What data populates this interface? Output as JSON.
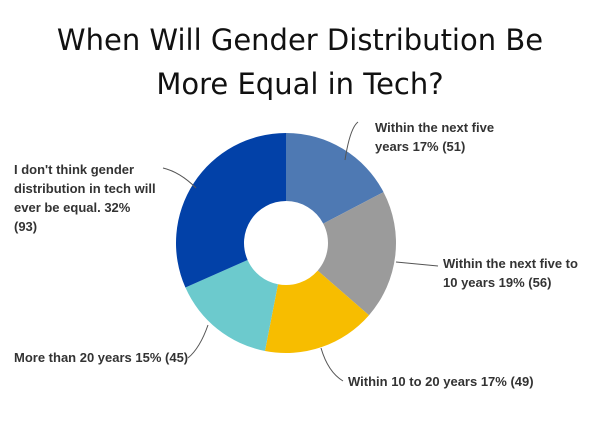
{
  "chart_data": {
    "type": "pie",
    "variant": "donut",
    "title_lines": [
      "When Will Gender Distribution Be",
      "More Equal in Tech?"
    ],
    "slices": [
      {
        "label_lines": [
          "Within the next five",
          "years 17% (51)"
        ],
        "percent": 17,
        "count": 51,
        "color": "#4e79b3"
      },
      {
        "label_lines": [
          "Within the next five to",
          "10 years 19% (56)"
        ],
        "percent": 19,
        "count": 56,
        "color": "#9b9b9b"
      },
      {
        "label_lines": [
          "Within 10 to 20 years 17% (49)"
        ],
        "percent": 17,
        "count": 49,
        "color": "#f7bd00"
      },
      {
        "label_lines": [
          "More than 20 years 15% (45)"
        ],
        "percent": 15,
        "count": 45,
        "color": "#6ccacd"
      },
      {
        "label_lines": [
          "I don't think gender",
          "distribution in tech will",
          "ever be equal. 32%",
          "(93)"
        ],
        "percent": 32,
        "count": 93,
        "color": "#0241a8"
      }
    ]
  }
}
